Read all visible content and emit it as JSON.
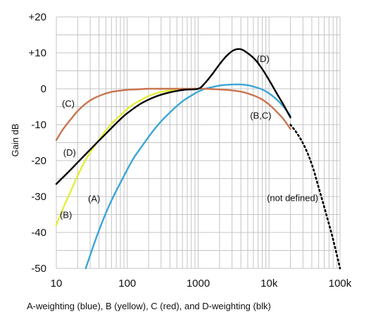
{
  "chart_data": {
    "type": "line",
    "xscale": "log",
    "xlim": [
      10,
      100000
    ],
    "ylim": [
      -50,
      20
    ],
    "grid": true,
    "xticks": [
      10,
      100,
      1000,
      10000,
      100000
    ],
    "xtick_labels": [
      "10",
      "100",
      "1000",
      "10k",
      "100k"
    ],
    "yticks": [
      20,
      10,
      0,
      -10,
      -20,
      -30,
      -40,
      -50
    ],
    "ytick_labels": [
      "+20",
      "+10",
      "0",
      "-10",
      "-20",
      "-30",
      "-40",
      "-50"
    ],
    "ylabel": "Gain dB",
    "caption": "A-weighting (blue), B (yellow), C (red), and D-weighting (blk)",
    "series": [
      {
        "name": "(A)",
        "color": "#3aa6d6",
        "x": [
          26,
          32,
          40,
          50,
          63,
          80,
          100,
          125,
          160,
          200,
          250,
          315,
          400,
          500,
          630,
          800,
          1000,
          1250,
          1600,
          2000,
          2500,
          3150,
          4000,
          5000,
          6300,
          8000,
          10000,
          12500,
          16000,
          20000
        ],
        "y": [
          -50,
          -44.7,
          -39.4,
          -34.6,
          -30.2,
          -26.2,
          -22.5,
          -19.1,
          -16.1,
          -13.4,
          -10.9,
          -8.6,
          -6.6,
          -4.8,
          -3.2,
          -1.9,
          -0.8,
          0.0,
          0.5,
          0.9,
          1.1,
          1.2,
          1.2,
          1.0,
          0.5,
          -0.2,
          -1.3,
          -2.8,
          -5.0,
          -7.5
        ]
      },
      {
        "name": "(B)",
        "color": "#e3ee3a",
        "x": [
          10,
          12.5,
          16,
          20,
          25,
          31.5,
          40,
          50,
          63,
          80,
          100,
          125,
          160,
          200,
          250,
          315,
          400,
          500,
          630,
          800,
          1000
        ],
        "y": [
          -38,
          -33.2,
          -28.5,
          -24.2,
          -20.4,
          -17.1,
          -14.2,
          -11.6,
          -9.3,
          -7.4,
          -5.6,
          -4.2,
          -3.0,
          -2.0,
          -1.3,
          -0.8,
          -0.5,
          -0.3,
          -0.1,
          0.0,
          0.0
        ]
      },
      {
        "name": "(B,C)",
        "color": "#c8744e",
        "x": [
          10,
          12.5,
          16,
          20,
          25,
          31.5,
          40,
          50,
          63,
          80,
          100,
          125,
          160,
          200,
          250,
          315,
          400,
          500,
          630,
          800,
          1000,
          1250,
          1600,
          2000,
          2500,
          3150,
          4000,
          5000,
          6300,
          8000,
          10000,
          12500,
          16000,
          20000
        ],
        "y": [
          -14.3,
          -11.2,
          -8.5,
          -6.2,
          -4.4,
          -3.0,
          -2.0,
          -1.3,
          -0.8,
          -0.5,
          -0.3,
          -0.2,
          -0.1,
          0,
          0,
          0,
          0,
          0,
          0,
          0,
          0,
          0,
          -0.1,
          -0.2,
          -0.3,
          -0.5,
          -0.8,
          -1.3,
          -2.0,
          -3.0,
          -4.4,
          -6.2,
          -8.5,
          -11.2
        ]
      },
      {
        "name": "(D)",
        "color": "#000000",
        "x": [
          10,
          16,
          20,
          31.5,
          50,
          80,
          100,
          160,
          250,
          400,
          630,
          1000,
          1250,
          1600,
          2000,
          2500,
          3150,
          4000,
          5000,
          6300,
          8000,
          10000,
          12500,
          16000,
          20000
        ],
        "y": [
          -26.5,
          -22.5,
          -20.5,
          -16.5,
          -12.5,
          -8.5,
          -6.8,
          -4.0,
          -2.2,
          -1.0,
          -0.3,
          0.0,
          1.6,
          4.2,
          6.8,
          9.1,
          10.7,
          11.0,
          9.9,
          8.2,
          5.5,
          2.4,
          -0.9,
          -4.5,
          -8.0
        ]
      },
      {
        "name": "(not defined)",
        "color": "#000000",
        "style": "dotted",
        "x": [
          20000,
          25000,
          31500,
          40000,
          50000,
          63000,
          80000,
          100000
        ],
        "y": [
          -10,
          -12.5,
          -16,
          -21,
          -27.5,
          -34.5,
          -42,
          -50
        ]
      }
    ],
    "annotations": [
      {
        "text": "(A)",
        "x": 28,
        "y": -31.5
      },
      {
        "text": "(B)",
        "x": 11.2,
        "y": -36
      },
      {
        "text": "(C)",
        "x": 12,
        "y": -5
      },
      {
        "text": "(D)",
        "x": 12.5,
        "y": -18.6
      },
      {
        "text": "(D)",
        "x": 6700,
        "y": 7.5
      },
      {
        "text": "(B,C)",
        "x": 5400,
        "y": -8.3
      },
      {
        "text": "(not defined)",
        "x": 9300,
        "y": -31.3
      }
    ]
  }
}
